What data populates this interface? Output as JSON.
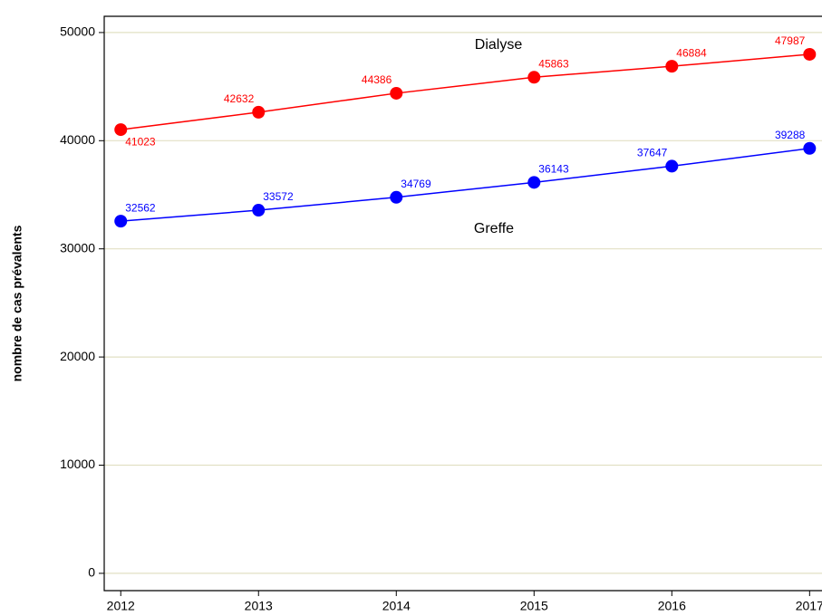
{
  "chart_data": {
    "type": "line",
    "y_label": "nombre de cas prévalents",
    "x": [
      2012,
      2013,
      2014,
      2015,
      2016,
      2017
    ],
    "xlim": [
      2011.88,
      2017.09
    ],
    "xticks": [
      2012,
      2013,
      2014,
      2015,
      2016,
      2017
    ],
    "ylim": [
      -1600,
      51500
    ],
    "yticks": [
      0,
      10000,
      20000,
      30000,
      40000,
      50000
    ],
    "grid": true,
    "series": [
      {
        "name": "Dialyse",
        "color": "#ff0000",
        "values": [
          41023,
          42632,
          44386,
          45863,
          46884,
          47987
        ]
      },
      {
        "name": "Greffe",
        "color": "#0000ff",
        "values": [
          32562,
          33572,
          34769,
          36143,
          37647,
          39288
        ]
      }
    ]
  }
}
